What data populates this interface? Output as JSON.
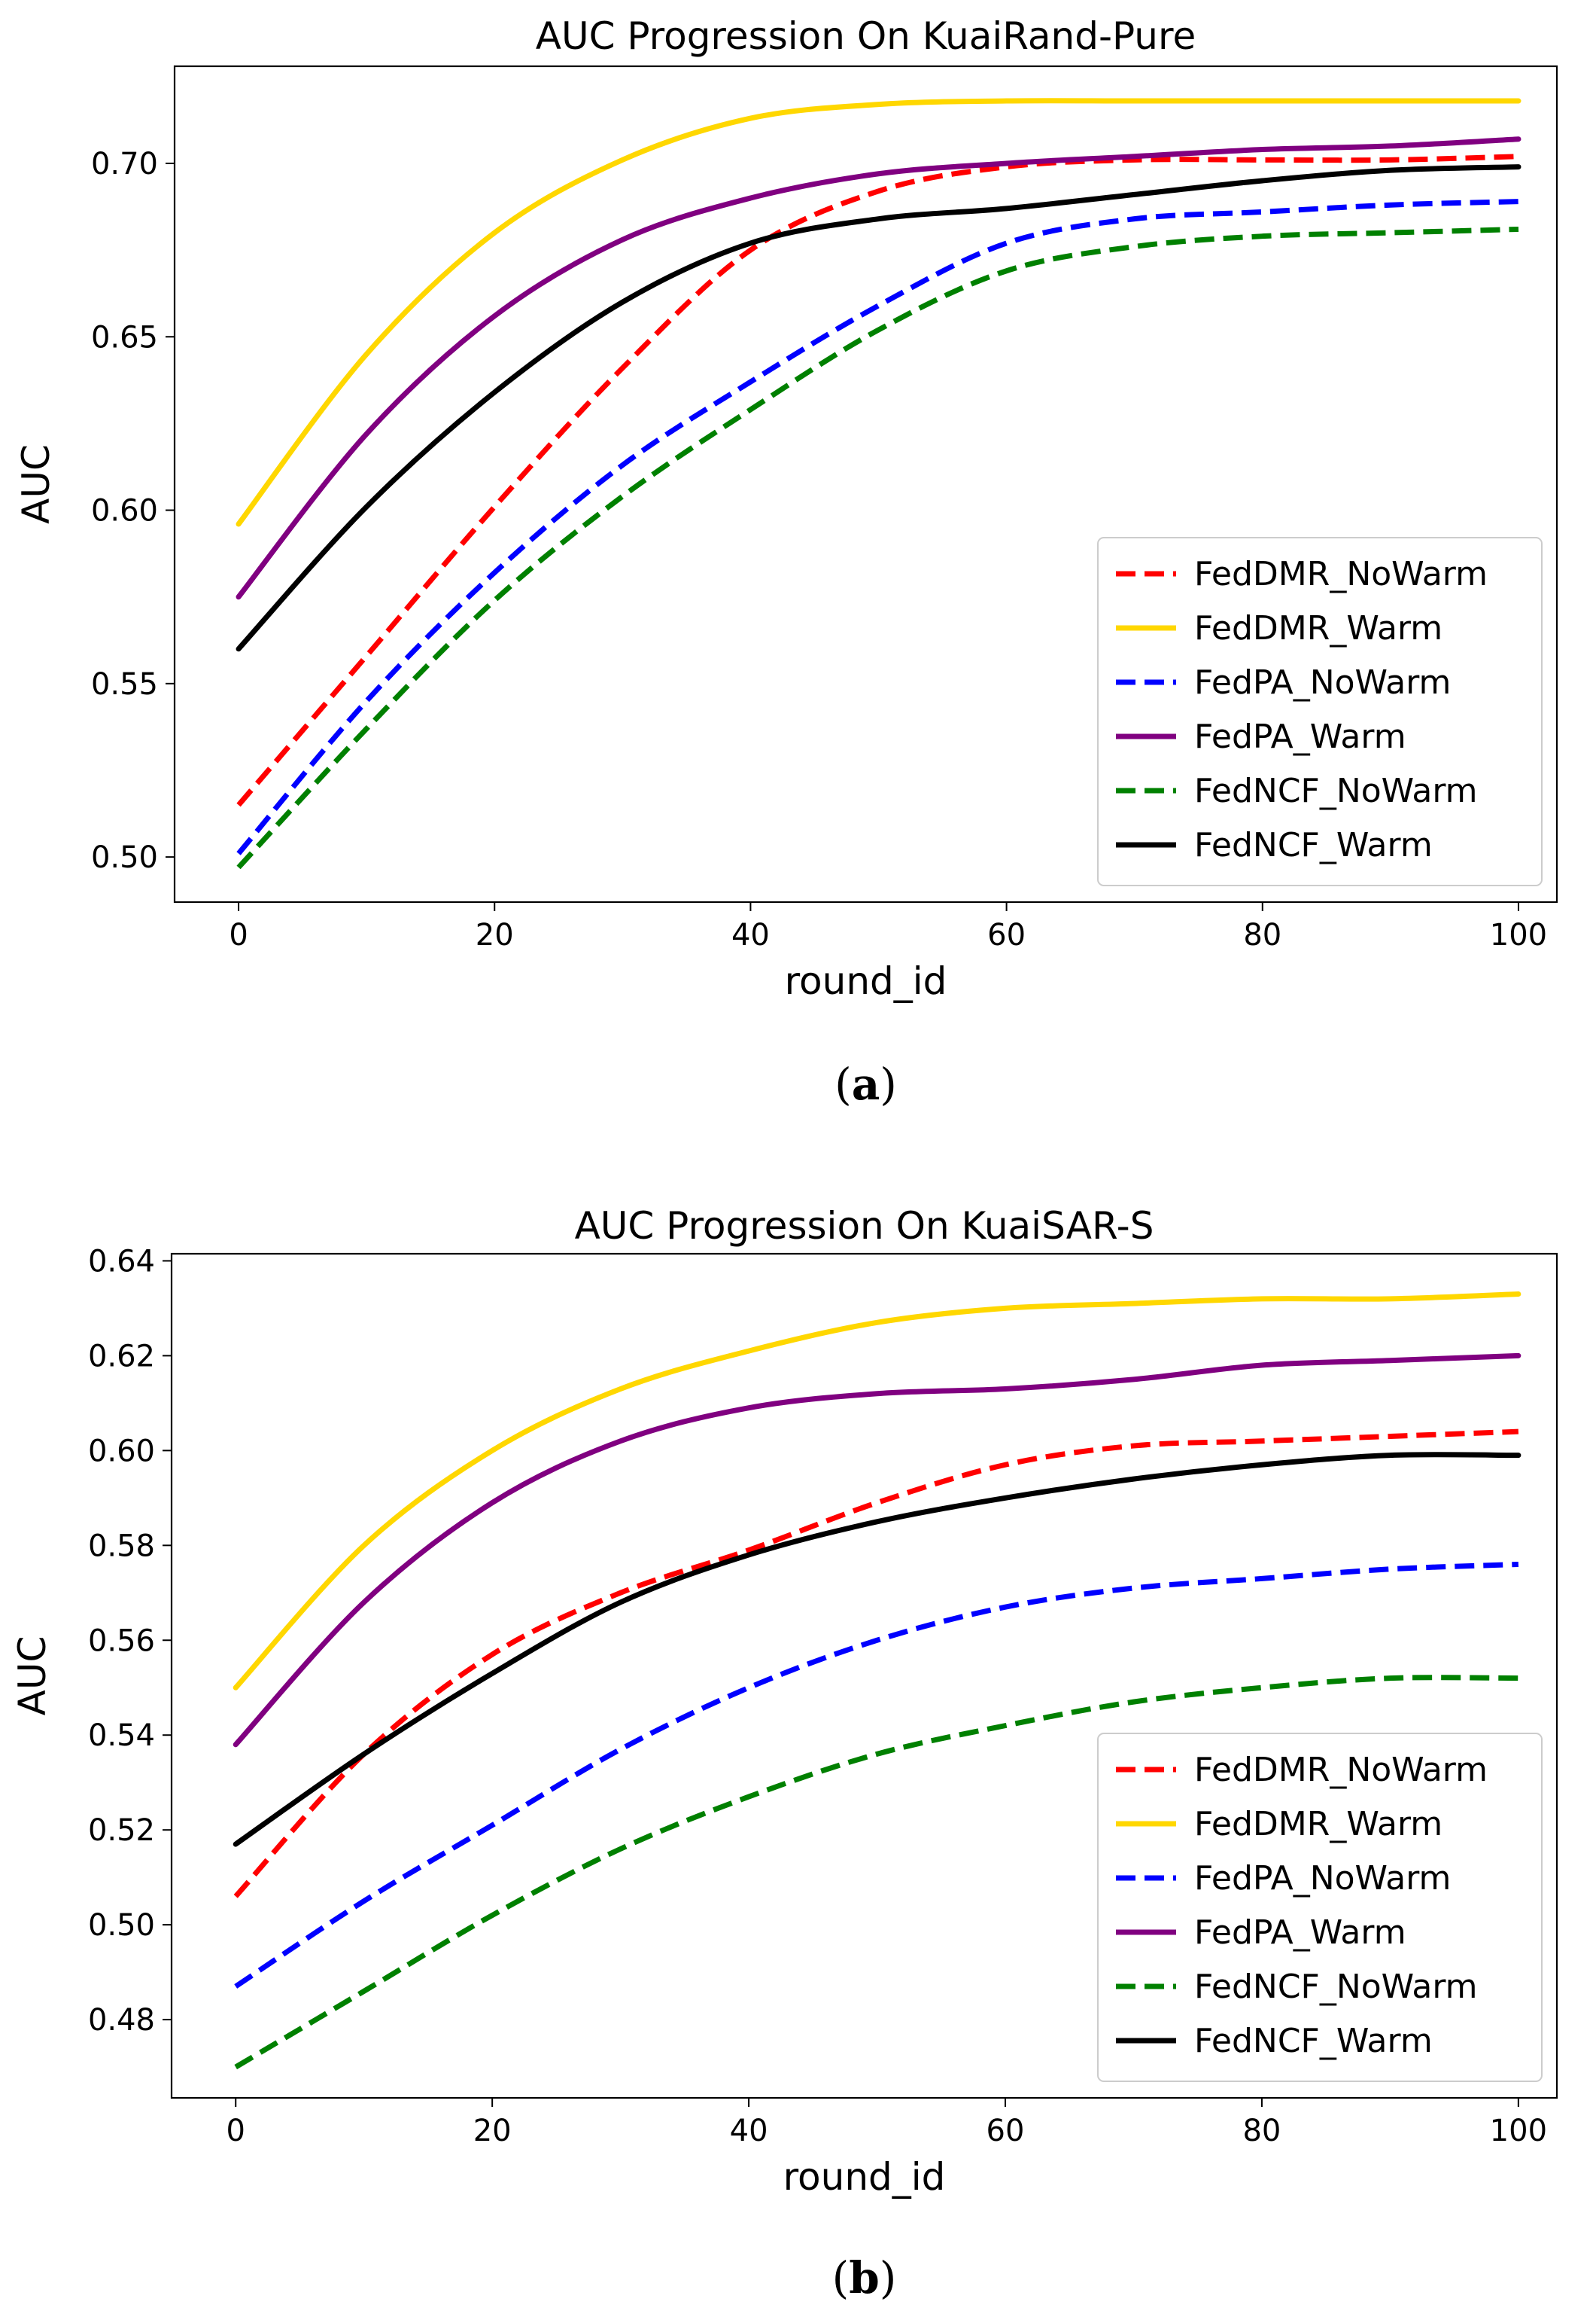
{
  "chart_data": [
    {
      "type": "line",
      "title": "AUC Progression On KuaiRand-Pure",
      "xlabel": "round_id",
      "ylabel": "AUC",
      "xlim": [
        -5,
        103
      ],
      "ylim": [
        0.487,
        0.728
      ],
      "xticks": [
        0,
        20,
        40,
        60,
        80,
        100
      ],
      "yticks": [
        0.5,
        0.55,
        0.6,
        0.65,
        0.7
      ],
      "ytick_labels": [
        "0.50",
        "0.55",
        "0.60",
        "0.65",
        "0.70"
      ],
      "legend": "lower-right",
      "caption": {
        "open": "(",
        "letter": "a",
        "close": ")"
      },
      "series": [
        {
          "name": "FedDMR_NoWarm",
          "color": "#ff0000",
          "style": "dashed",
          "x": [
            0,
            10,
            20,
            30,
            40,
            50,
            60,
            70,
            80,
            90,
            100
          ],
          "y": [
            0.515,
            0.558,
            0.601,
            0.641,
            0.675,
            0.692,
            0.699,
            0.701,
            0.701,
            0.701,
            0.702
          ]
        },
        {
          "name": "FedDMR_Warm",
          "color": "#ffd700",
          "style": "solid",
          "x": [
            0,
            10,
            20,
            30,
            40,
            50,
            60,
            70,
            80,
            90,
            100
          ],
          "y": [
            0.596,
            0.645,
            0.68,
            0.701,
            0.713,
            0.717,
            0.718,
            0.718,
            0.718,
            0.718,
            0.718
          ]
        },
        {
          "name": "FedPA_NoWarm",
          "color": "#0000ff",
          "style": "dashed",
          "x": [
            0,
            10,
            20,
            30,
            40,
            50,
            60,
            70,
            80,
            90,
            100
          ],
          "y": [
            0.501,
            0.545,
            0.582,
            0.613,
            0.637,
            0.659,
            0.677,
            0.684,
            0.686,
            0.688,
            0.689
          ]
        },
        {
          "name": "FedPA_Warm",
          "color": "#800080",
          "style": "solid",
          "x": [
            0,
            10,
            20,
            30,
            40,
            50,
            60,
            70,
            80,
            90,
            100
          ],
          "y": [
            0.575,
            0.622,
            0.656,
            0.678,
            0.69,
            0.697,
            0.7,
            0.702,
            0.704,
            0.705,
            0.707
          ]
        },
        {
          "name": "FedNCF_NoWarm",
          "color": "#008000",
          "style": "dashed",
          "x": [
            0,
            10,
            20,
            30,
            40,
            50,
            60,
            70,
            80,
            90,
            100
          ],
          "y": [
            0.497,
            0.537,
            0.574,
            0.604,
            0.629,
            0.652,
            0.669,
            0.676,
            0.679,
            0.68,
            0.681
          ]
        },
        {
          "name": "FedNCF_Warm",
          "color": "#000000",
          "style": "solid",
          "x": [
            0,
            10,
            20,
            30,
            40,
            50,
            60,
            70,
            80,
            90,
            100
          ],
          "y": [
            0.56,
            0.601,
            0.634,
            0.66,
            0.677,
            0.684,
            0.687,
            0.691,
            0.695,
            0.698,
            0.699
          ]
        }
      ]
    },
    {
      "type": "line",
      "title": "AUC Progression On KuaiSAR-S",
      "xlabel": "round_id",
      "ylabel": "AUC",
      "xlim": [
        -5,
        103
      ],
      "ylim": [
        0.4635,
        0.6415
      ],
      "xticks": [
        0,
        20,
        40,
        60,
        80,
        100
      ],
      "yticks": [
        0.48,
        0.5,
        0.52,
        0.54,
        0.56,
        0.58,
        0.6,
        0.62,
        0.64
      ],
      "ytick_labels": [
        "0.48",
        "0.50",
        "0.52",
        "0.54",
        "0.56",
        "0.58",
        "0.60",
        "0.62",
        "0.64"
      ],
      "legend": "lower-right",
      "caption": {
        "open": "(",
        "letter": "b",
        "close": ")"
      },
      "series": [
        {
          "name": "FedDMR_NoWarm",
          "color": "#ff0000",
          "style": "dashed",
          "x": [
            0,
            10,
            20,
            30,
            40,
            50,
            60,
            70,
            80,
            90,
            100
          ],
          "y": [
            0.506,
            0.536,
            0.557,
            0.57,
            0.579,
            0.589,
            0.597,
            0.601,
            0.602,
            0.603,
            0.604
          ]
        },
        {
          "name": "FedDMR_Warm",
          "color": "#ffd700",
          "style": "solid",
          "x": [
            0,
            10,
            20,
            30,
            40,
            50,
            60,
            70,
            80,
            90,
            100
          ],
          "y": [
            0.55,
            0.58,
            0.6,
            0.613,
            0.621,
            0.627,
            0.63,
            0.631,
            0.632,
            0.632,
            0.633
          ]
        },
        {
          "name": "FedPA_NoWarm",
          "color": "#0000ff",
          "style": "dashed",
          "x": [
            0,
            10,
            20,
            30,
            40,
            50,
            60,
            70,
            80,
            90,
            100
          ],
          "y": [
            0.487,
            0.505,
            0.521,
            0.537,
            0.55,
            0.56,
            0.567,
            0.571,
            0.573,
            0.575,
            0.576
          ]
        },
        {
          "name": "FedPA_Warm",
          "color": "#800080",
          "style": "solid",
          "x": [
            0,
            10,
            20,
            30,
            40,
            50,
            60,
            70,
            80,
            90,
            100
          ],
          "y": [
            0.538,
            0.568,
            0.589,
            0.602,
            0.609,
            0.612,
            0.613,
            0.615,
            0.618,
            0.619,
            0.62
          ]
        },
        {
          "name": "FedNCF_NoWarm",
          "color": "#008000",
          "style": "dashed",
          "x": [
            0,
            10,
            20,
            30,
            40,
            50,
            60,
            70,
            80,
            90,
            100
          ],
          "y": [
            0.47,
            0.486,
            0.502,
            0.516,
            0.527,
            0.536,
            0.542,
            0.547,
            0.55,
            0.552,
            0.552
          ]
        },
        {
          "name": "FedNCF_Warm",
          "color": "#000000",
          "style": "solid",
          "x": [
            0,
            10,
            20,
            30,
            40,
            50,
            60,
            70,
            80,
            90,
            100
          ],
          "y": [
            0.517,
            0.536,
            0.553,
            0.568,
            0.578,
            0.585,
            0.59,
            0.594,
            0.597,
            0.599,
            0.599
          ]
        }
      ]
    }
  ]
}
